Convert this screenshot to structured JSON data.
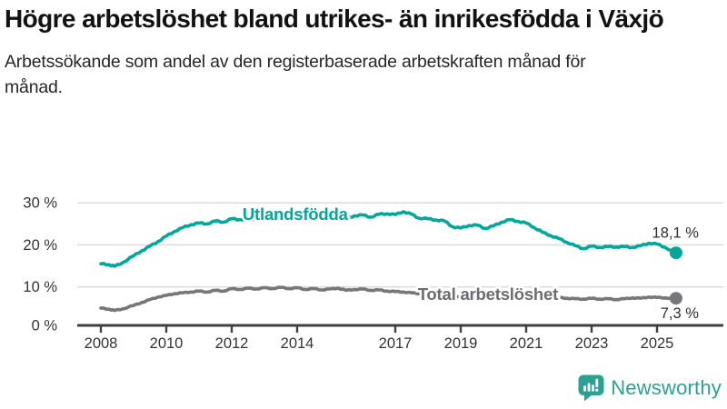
{
  "header": {
    "title": "Högre arbetslöshet bland utrikes- än inrikesfödda i Växjö",
    "subtitle": "Arbetssökande som andel av den registerbaserade arbetskraften månad för månad."
  },
  "footer": {
    "brand": "Newsworthy",
    "logo_icon": "bar-chart-speech-bubble-icon"
  },
  "colors": {
    "series_foreign_born": "#00a79a",
    "series_total": "#76767b",
    "series_total_label": "#6c6c71",
    "axis": "#3f3f3f",
    "gridline": "#d9d9d9",
    "tick_label": "#333333",
    "annotation": "#2e2e2e",
    "logo_teal": "#2ba194",
    "background": "#ffffff"
  },
  "chart_data": {
    "type": "line",
    "title": "Högre arbetslöshet bland utrikes- än inrikesfödda i Växjö",
    "subtitle": "Arbetssökande som andel av den registerbaserade arbetskraften månad för månad.",
    "xlabel": "",
    "ylabel": "",
    "x_axis": {
      "range": [
        2007.9,
        2026.0
      ],
      "ticks": [
        2008,
        2010,
        2012,
        2014,
        2017,
        2019,
        2021,
        2023,
        2025
      ],
      "tick_labels": [
        "2008",
        "2010",
        "2012",
        "2014",
        "2017",
        "2019",
        "2021",
        "2023",
        "2025"
      ]
    },
    "y_axis": {
      "range": [
        0,
        32
      ],
      "ticks": [
        0,
        10,
        20,
        30
      ],
      "tick_labels": [
        "0 %",
        "10 %",
        "20 %",
        "30 %"
      ],
      "grid": true
    },
    "legend_position": "inline-labels",
    "series": [
      {
        "name": "Utlandsfödda",
        "color": "#00a79a",
        "end_value": 18.1,
        "end_label": "18,1 %",
        "value_label_pos": "above",
        "label_anchor": {
          "x": 2013.94,
          "y": 25.9
        },
        "points": [
          [
            2008.0,
            15.5
          ],
          [
            2008.25,
            15.3
          ],
          [
            2008.42,
            14.9
          ],
          [
            2008.67,
            15.8
          ],
          [
            2009.0,
            17.4
          ],
          [
            2009.25,
            18.6
          ],
          [
            2009.5,
            19.7
          ],
          [
            2009.75,
            20.8
          ],
          [
            2010.0,
            22.1
          ],
          [
            2010.25,
            23.2
          ],
          [
            2010.5,
            24.1
          ],
          [
            2010.75,
            24.8
          ],
          [
            2011.0,
            25.2
          ],
          [
            2011.25,
            25.0
          ],
          [
            2011.5,
            25.7
          ],
          [
            2011.75,
            25.4
          ],
          [
            2012.0,
            26.2
          ],
          [
            2012.25,
            26.0
          ],
          [
            2012.5,
            26.3
          ],
          [
            2012.75,
            26.1
          ],
          [
            2013.0,
            26.3
          ],
          [
            2013.25,
            26.1
          ],
          [
            2013.5,
            26.4
          ],
          [
            2013.75,
            26.2
          ],
          [
            2014.0,
            26.6
          ],
          [
            2014.25,
            26.3
          ],
          [
            2014.5,
            26.5
          ],
          [
            2014.75,
            26.4
          ],
          [
            2015.0,
            26.7
          ],
          [
            2015.25,
            27.4
          ],
          [
            2015.5,
            26.3
          ],
          [
            2015.75,
            26.9
          ],
          [
            2016.0,
            27.1
          ],
          [
            2016.25,
            26.6
          ],
          [
            2016.5,
            27.3
          ],
          [
            2016.75,
            27.4
          ],
          [
            2017.0,
            27.2
          ],
          [
            2017.25,
            27.9
          ],
          [
            2017.5,
            27.3
          ],
          [
            2017.7,
            26.4
          ],
          [
            2018.0,
            26.2
          ],
          [
            2018.25,
            25.9
          ],
          [
            2018.5,
            25.7
          ],
          [
            2018.75,
            24.3
          ],
          [
            2019.0,
            24.0
          ],
          [
            2019.25,
            24.6
          ],
          [
            2019.5,
            24.7
          ],
          [
            2019.75,
            23.9
          ],
          [
            2020.0,
            24.5
          ],
          [
            2020.25,
            25.4
          ],
          [
            2020.5,
            26.0
          ],
          [
            2020.75,
            25.6
          ],
          [
            2021.0,
            25.2
          ],
          [
            2021.25,
            24.1
          ],
          [
            2021.5,
            23.0
          ],
          [
            2021.75,
            22.2
          ],
          [
            2022.0,
            21.5
          ],
          [
            2022.25,
            20.6
          ],
          [
            2022.5,
            19.8
          ],
          [
            2022.75,
            19.1
          ],
          [
            2023.0,
            19.7
          ],
          [
            2023.25,
            19.4
          ],
          [
            2023.5,
            19.6
          ],
          [
            2023.75,
            19.5
          ],
          [
            2024.0,
            19.6
          ],
          [
            2024.25,
            19.4
          ],
          [
            2024.5,
            19.8
          ],
          [
            2024.75,
            20.4
          ],
          [
            2025.0,
            20.2
          ],
          [
            2025.25,
            19.4
          ],
          [
            2025.58,
            18.1
          ]
        ]
      },
      {
        "name": "Total arbetslöshet",
        "color": "#76767b",
        "label_color": "#6c6c71",
        "end_value": 7.3,
        "end_label": "7,3 %",
        "value_label_pos": "below",
        "label_anchor": {
          "x": 2019.83,
          "y": 6.9
        },
        "points": [
          [
            2008.0,
            5.0
          ],
          [
            2008.25,
            4.7
          ],
          [
            2008.42,
            4.4
          ],
          [
            2008.67,
            4.8
          ],
          [
            2009.0,
            5.6
          ],
          [
            2009.25,
            6.3
          ],
          [
            2009.5,
            7.0
          ],
          [
            2009.75,
            7.6
          ],
          [
            2010.0,
            8.0
          ],
          [
            2010.25,
            8.4
          ],
          [
            2010.5,
            8.6
          ],
          [
            2010.75,
            8.8
          ],
          [
            2011.0,
            9.0
          ],
          [
            2011.25,
            8.8
          ],
          [
            2011.5,
            9.2
          ],
          [
            2011.75,
            9.0
          ],
          [
            2012.0,
            9.6
          ],
          [
            2012.25,
            9.4
          ],
          [
            2012.5,
            9.7
          ],
          [
            2012.75,
            9.5
          ],
          [
            2013.0,
            9.8
          ],
          [
            2013.25,
            9.6
          ],
          [
            2013.5,
            9.9
          ],
          [
            2013.75,
            9.6
          ],
          [
            2014.0,
            9.8
          ],
          [
            2014.25,
            9.4
          ],
          [
            2014.5,
            9.6
          ],
          [
            2014.75,
            9.3
          ],
          [
            2015.0,
            9.5
          ],
          [
            2015.25,
            9.7
          ],
          [
            2015.5,
            9.2
          ],
          [
            2015.75,
            9.4
          ],
          [
            2016.0,
            9.5
          ],
          [
            2016.25,
            9.2
          ],
          [
            2016.5,
            9.3
          ],
          [
            2016.75,
            9.0
          ],
          [
            2017.0,
            8.9
          ],
          [
            2017.25,
            8.8
          ],
          [
            2017.5,
            8.6
          ],
          [
            2017.75,
            8.4
          ],
          [
            2018.0,
            8.2
          ],
          [
            2018.25,
            8.0
          ],
          [
            2018.5,
            7.9
          ],
          [
            2018.75,
            7.7
          ],
          [
            2019.0,
            7.6
          ],
          [
            2019.25,
            7.7
          ],
          [
            2019.5,
            7.8
          ],
          [
            2019.75,
            7.7
          ],
          [
            2020.0,
            8.0
          ],
          [
            2020.25,
            8.6
          ],
          [
            2020.5,
            8.9
          ],
          [
            2020.75,
            8.8
          ],
          [
            2021.0,
            8.6
          ],
          [
            2021.25,
            8.3
          ],
          [
            2021.5,
            8.0
          ],
          [
            2021.75,
            7.7
          ],
          [
            2022.0,
            7.5
          ],
          [
            2022.25,
            7.3
          ],
          [
            2022.5,
            7.2
          ],
          [
            2022.75,
            7.1
          ],
          [
            2023.0,
            7.3
          ],
          [
            2023.25,
            7.1
          ],
          [
            2023.5,
            7.2
          ],
          [
            2023.75,
            7.0
          ],
          [
            2024.0,
            7.2
          ],
          [
            2024.25,
            7.4
          ],
          [
            2024.5,
            7.3
          ],
          [
            2024.75,
            7.6
          ],
          [
            2025.0,
            7.5
          ],
          [
            2025.25,
            7.4
          ],
          [
            2025.58,
            7.3
          ]
        ]
      }
    ]
  }
}
